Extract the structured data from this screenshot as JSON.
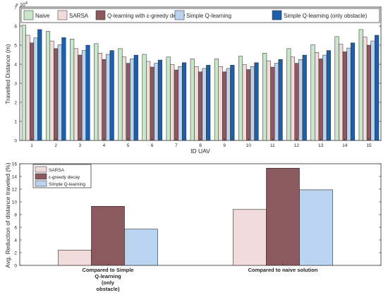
{
  "chart_data": [
    {
      "type": "bar",
      "xlabel": "ID UAV",
      "ylabel": "Travelled Distance (m)",
      "y_multiplier": "× 10",
      "y_multiplier_exp": "4",
      "ylim": [
        0,
        7
      ],
      "yticks": [
        0,
        1,
        2,
        3,
        4,
        5,
        6,
        7
      ],
      "grid": false,
      "legend_position": "top",
      "categories": [
        "1",
        "2",
        "3",
        "4",
        "5",
        "6",
        "7",
        "8",
        "9",
        "10",
        "11",
        "12",
        "13",
        "14",
        "15"
      ],
      "series": [
        {
          "name": "Naive",
          "color": "#c8e6c9",
          "values": [
            6.05,
            5.72,
            5.32,
            5.08,
            4.82,
            4.52,
            4.38,
            4.28,
            4.28,
            4.42,
            4.58,
            4.82,
            5.02,
            5.45,
            5.82
          ]
        },
        {
          "name": "SARSA",
          "color": "#f2dcdb",
          "values": [
            5.52,
            5.22,
            4.82,
            4.58,
            4.38,
            4.15,
            3.98,
            3.88,
            3.88,
            3.98,
            4.18,
            4.38,
            4.62,
            5.05,
            5.42
          ]
        },
        {
          "name": "Q-learning with ε-greedy decay",
          "color": "#8c5a5e",
          "values": [
            5.12,
            4.82,
            4.48,
            4.25,
            4.05,
            3.85,
            3.7,
            3.6,
            3.6,
            3.72,
            3.85,
            4.05,
            4.28,
            4.65,
            5.0
          ]
        },
        {
          "name": "Simple Q-learning",
          "color": "#b9d3f0",
          "values": [
            5.38,
            5.02,
            4.72,
            4.52,
            4.28,
            4.05,
            3.88,
            3.78,
            3.78,
            3.88,
            4.05,
            4.25,
            4.48,
            4.85,
            5.22
          ]
        },
        {
          "name": "Simple Q-learning (only obstacle)",
          "color": "#1f5fa8",
          "values": [
            5.82,
            5.4,
            5.0,
            4.72,
            4.48,
            4.22,
            4.08,
            3.95,
            3.95,
            4.08,
            4.25,
            4.48,
            4.72,
            5.12,
            5.52
          ]
        }
      ]
    },
    {
      "type": "bar",
      "xlabel": "",
      "ylabel": "Avg. Reduction of distance traveled (%)",
      "ylim": [
        0,
        16
      ],
      "yticks": [
        0,
        2,
        4,
        6,
        8,
        10,
        12,
        14,
        16
      ],
      "grid": false,
      "legend_position": "top-left",
      "categories": [
        [
          "Compared to Simple",
          "Q-learning",
          "(only",
          "obstacle)"
        ],
        [
          "Compared to naive solution"
        ]
      ],
      "series": [
        {
          "name": "SARSA",
          "color": "#f2dcdb",
          "values": [
            2.4,
            8.8
          ]
        },
        {
          "name": "ε-greedy decay",
          "color": "#8c5a5e",
          "values": [
            9.3,
            15.3
          ]
        },
        {
          "name": "Simple Q-learning",
          "color": "#b9d3f0",
          "values": [
            5.7,
            11.9
          ]
        }
      ]
    }
  ]
}
